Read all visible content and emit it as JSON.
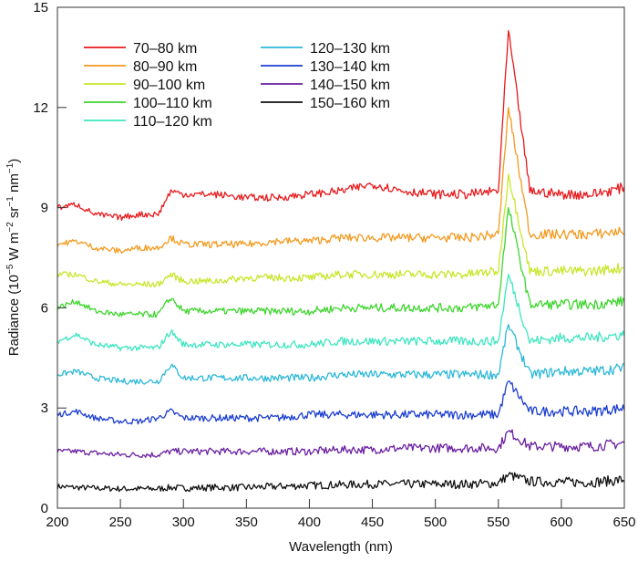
{
  "chart_data": {
    "type": "line",
    "title": "",
    "xlabel": "Wavelength (nm)",
    "ylabel": {
      "base": "Radiance (10",
      "exp1": "−5",
      "mid1": " W m",
      "exp2": "−2",
      "mid2": " sr",
      "exp3": "−1",
      "mid3": " nm",
      "exp4": "−1",
      "end": ")"
    },
    "xlim": [
      200,
      650
    ],
    "ylim": [
      0,
      15
    ],
    "xticks": [
      200,
      250,
      300,
      350,
      400,
      450,
      500,
      550,
      600,
      650
    ],
    "yticks": [
      0,
      3,
      6,
      9,
      12,
      15
    ],
    "grid": false,
    "legend_placement": "top-left",
    "x": [
      200,
      215,
      230,
      250,
      265,
      280,
      290,
      300,
      325,
      350,
      375,
      400,
      425,
      450,
      475,
      500,
      525,
      550,
      558,
      575,
      600,
      625,
      650
    ],
    "series": [
      {
        "name": "70–80 km",
        "color": "#e8191c",
        "values": [
          9.0,
          9.1,
          8.8,
          8.7,
          8.8,
          8.8,
          9.5,
          9.4,
          9.4,
          9.3,
          9.3,
          9.4,
          9.5,
          9.7,
          9.5,
          9.4,
          9.4,
          9.5,
          14.3,
          9.5,
          9.4,
          9.4,
          9.6
        ]
      },
      {
        "name": "80–90 km",
        "color": "#f39a1e",
        "values": [
          7.9,
          8.0,
          7.8,
          7.7,
          7.8,
          7.8,
          8.1,
          7.9,
          7.9,
          7.9,
          8.0,
          8.0,
          8.1,
          8.1,
          8.1,
          8.1,
          8.1,
          8.2,
          12.0,
          8.2,
          8.2,
          8.2,
          8.3
        ]
      },
      {
        "name": "90–100 km",
        "color": "#c8e62a",
        "values": [
          7.0,
          7.0,
          6.8,
          6.7,
          6.7,
          6.7,
          7.0,
          6.8,
          6.8,
          6.9,
          6.9,
          6.9,
          7.0,
          7.0,
          7.0,
          7.0,
          7.0,
          7.1,
          10.0,
          7.1,
          7.1,
          7.1,
          7.2
        ]
      },
      {
        "name": "100–110 km",
        "color": "#3fd52f",
        "values": [
          6.0,
          6.2,
          5.9,
          5.8,
          5.8,
          5.8,
          6.3,
          5.9,
          5.9,
          5.9,
          5.9,
          5.9,
          6.0,
          6.0,
          6.0,
          6.0,
          6.0,
          6.1,
          9.0,
          6.1,
          6.1,
          6.1,
          6.2
        ]
      },
      {
        "name": "110–120 km",
        "color": "#3de6c0",
        "values": [
          5.0,
          5.2,
          4.9,
          4.8,
          4.8,
          4.8,
          5.3,
          4.9,
          4.9,
          4.9,
          4.9,
          4.9,
          5.0,
          5.0,
          5.0,
          5.0,
          5.0,
          5.0,
          7.0,
          5.0,
          5.1,
          5.1,
          5.2
        ]
      },
      {
        "name": "120–130 km",
        "color": "#2bb8d8",
        "values": [
          4.0,
          4.1,
          3.9,
          3.8,
          3.8,
          3.8,
          4.3,
          3.9,
          3.9,
          3.9,
          3.9,
          3.9,
          4.0,
          4.0,
          4.0,
          4.0,
          4.0,
          4.0,
          5.5,
          4.0,
          4.1,
          4.1,
          4.2
        ]
      },
      {
        "name": "130–140 km",
        "color": "#1d3fd0",
        "values": [
          2.8,
          2.9,
          2.7,
          2.6,
          2.6,
          2.7,
          2.9,
          2.7,
          2.7,
          2.7,
          2.7,
          2.8,
          2.8,
          2.8,
          2.8,
          2.8,
          2.8,
          2.8,
          3.8,
          2.9,
          2.9,
          2.9,
          3.0
        ]
      },
      {
        "name": "140–150 km",
        "color": "#6a1fa0",
        "values": [
          1.7,
          1.7,
          1.65,
          1.6,
          1.6,
          1.6,
          1.7,
          1.7,
          1.7,
          1.7,
          1.7,
          1.7,
          1.75,
          1.75,
          1.8,
          1.8,
          1.8,
          1.8,
          2.3,
          1.85,
          1.85,
          1.85,
          1.95
        ]
      },
      {
        "name": "150–160 km",
        "color": "#111111",
        "values": [
          0.65,
          0.62,
          0.6,
          0.58,
          0.58,
          0.58,
          0.62,
          0.6,
          0.62,
          0.62,
          0.65,
          0.68,
          0.7,
          0.72,
          0.72,
          0.72,
          0.72,
          0.75,
          1.0,
          0.8,
          0.78,
          0.78,
          0.85
        ]
      }
    ]
  }
}
